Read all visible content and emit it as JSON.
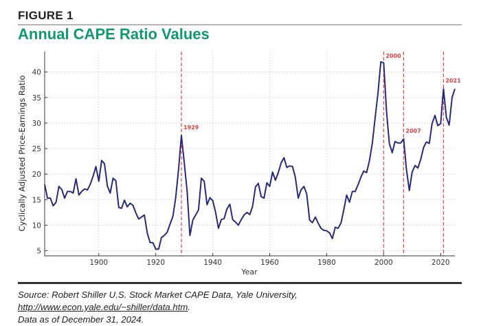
{
  "header": {
    "figure_label": "FIGURE 1",
    "title": "Annual CAPE Ratio Values"
  },
  "footer": {
    "source_prefix": "Source: Robert Shiller U.S. Stock Market CAPE Data, Yale University, ",
    "source_url": "http://www.econ.yale.edu/~shiller/data.htm",
    "source_suffix": ".",
    "date_note": "Data as of December 31, 2024."
  },
  "colors": {
    "title": "#0f9a6a",
    "line": "#27287a",
    "marker": "#e8403f"
  },
  "chart_data": {
    "type": "line",
    "title": "",
    "xlabel": "Year",
    "ylabel": "Cyclically Adjusted Price-Earnings Ratio",
    "xlim": [
      1881,
      2025
    ],
    "ylim": [
      4,
      44
    ],
    "xticks": [
      1900,
      1920,
      1940,
      1960,
      1980,
      2000,
      2020
    ],
    "yticks": [
      5,
      10,
      15,
      20,
      25,
      30,
      35,
      40
    ],
    "grid": true,
    "x_start": 1881,
    "values": [
      18.0,
      15.3,
      15.3,
      13.8,
      14.5,
      17.6,
      17.0,
      15.3,
      16.6,
      16.6,
      16.3,
      19.1,
      15.9,
      16.6,
      17.1,
      16.9,
      18.0,
      19.6,
      21.5,
      18.6,
      22.7,
      22.0,
      17.7,
      16.3,
      19.2,
      18.7,
      13.5,
      13.3,
      14.9,
      13.6,
      14.3,
      13.9,
      12.4,
      11.2,
      11.6,
      12.0,
      8.5,
      6.6,
      6.6,
      5.3,
      5.3,
      7.6,
      8.0,
      8.6,
      10.2,
      11.7,
      15.4,
      21.0,
      27.6,
      22.3,
      16.7,
      8.0,
      11.0,
      12.0,
      13.0,
      19.2,
      18.6,
      14.0,
      15.4,
      14.8,
      12.5,
      9.4,
      11.1,
      11.3,
      13.2,
      14.1,
      11.1,
      10.6,
      10.0,
      11.1,
      12.0,
      12.5,
      12.1,
      13.7,
      17.5,
      18.2,
      15.6,
      15.3,
      18.3,
      17.6,
      20.4,
      18.8,
      20.3,
      22.2,
      23.2,
      21.3,
      21.6,
      21.5,
      19.4,
      15.3,
      16.9,
      17.6,
      16.1,
      11.0,
      10.5,
      11.6,
      10.4,
      9.4,
      9.0,
      8.9,
      8.5,
      7.4,
      9.6,
      9.4,
      10.4,
      13.0,
      15.9,
      14.5,
      16.6,
      16.6,
      17.9,
      19.4,
      20.6,
      20.3,
      22.6,
      26.0,
      31.0,
      35.9,
      42.0,
      41.8,
      32.3,
      26.0,
      24.2,
      26.4,
      26.1,
      26.1,
      26.9,
      20.9,
      16.8,
      20.4,
      21.7,
      21.2,
      22.9,
      25.2,
      26.3,
      26.0,
      29.9,
      31.5,
      29.5,
      29.9,
      36.7,
      31.1,
      29.6,
      35.0,
      36.7
    ],
    "annotations": [
      {
        "x": 1929,
        "label": "1929"
      },
      {
        "x": 2000,
        "label": "2000"
      },
      {
        "x": 2007,
        "label": "2007"
      },
      {
        "x": 2021,
        "label": "2021"
      }
    ]
  }
}
